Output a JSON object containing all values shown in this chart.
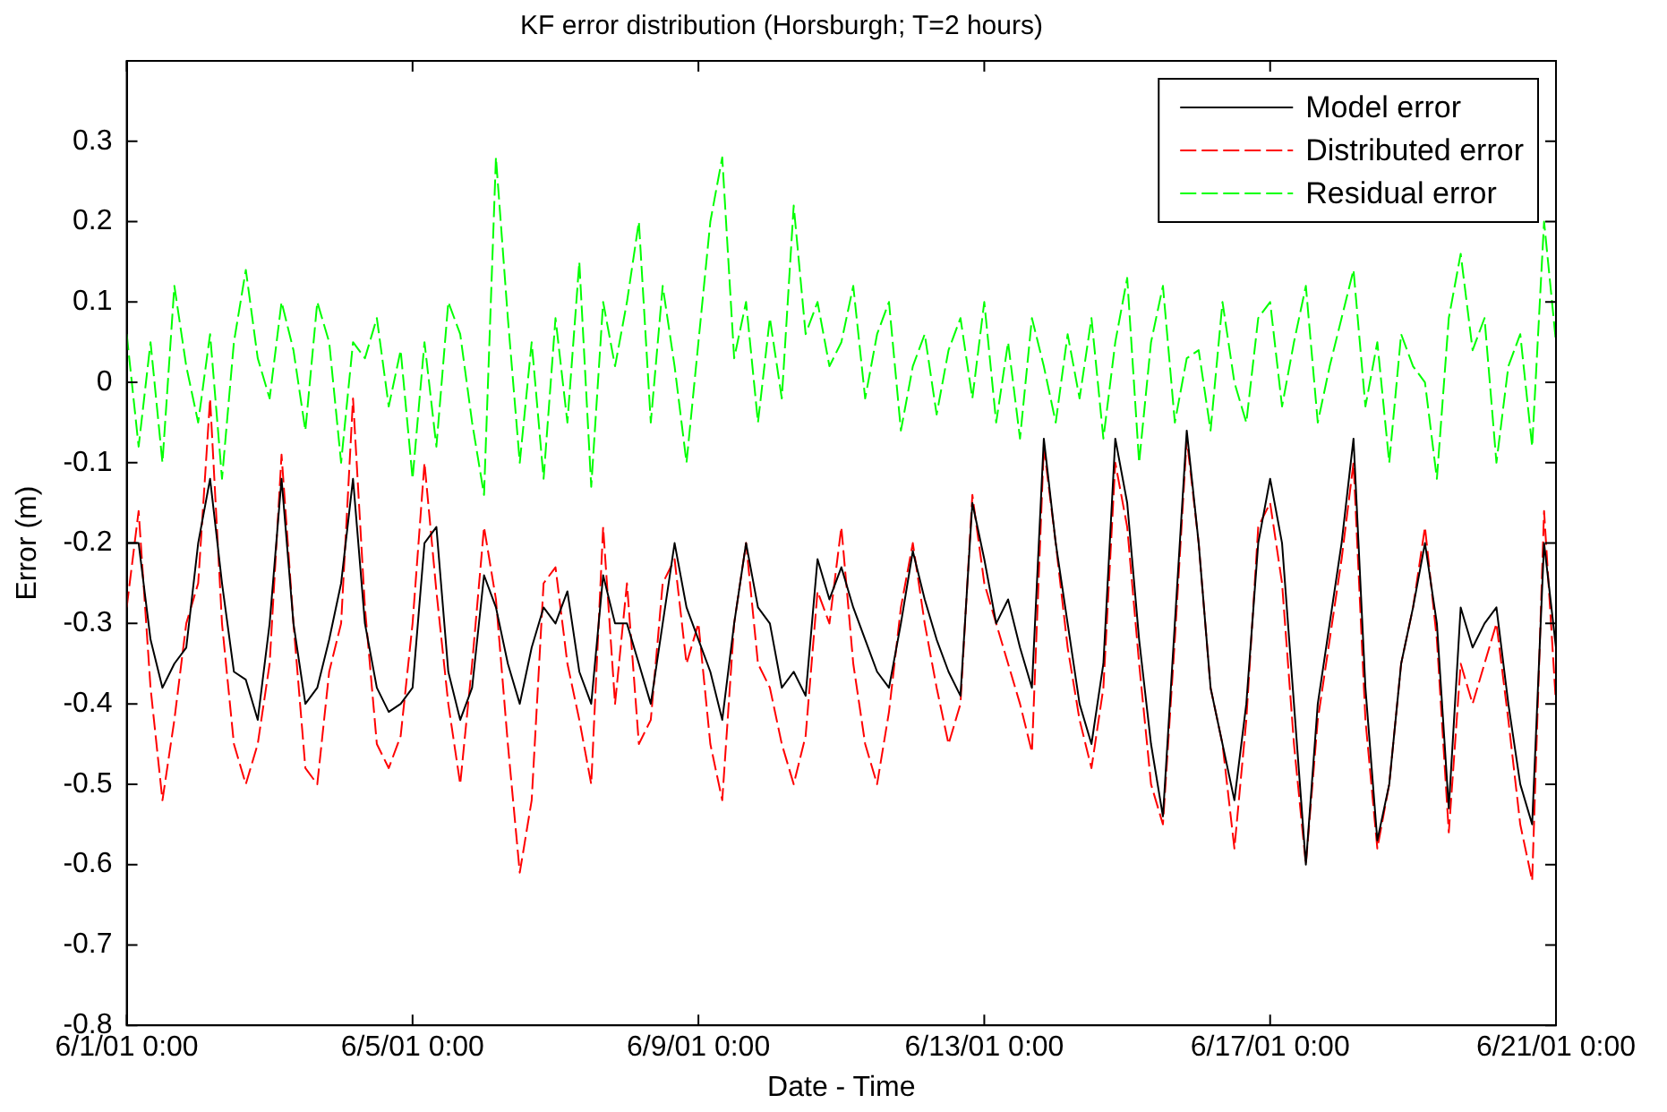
{
  "chart_data": {
    "type": "line",
    "title": "KF error distribution (Horsburgh; T=2 hours)",
    "xlabel": "Date - Time",
    "ylabel": "Error (m)",
    "x": [
      "--06-01T00:00",
      "--06-01T04:00",
      "--06-01T08:00",
      "--06-01T12:00",
      "--06-01T16:00",
      "--06-01T20:00",
      "--06-02T00:00",
      "--06-02T04:00",
      "--06-02T08:00",
      "--06-02T12:00",
      "--06-02T16:00",
      "--06-02T20:00",
      "--06-03T00:00",
      "--06-03T04:00",
      "--06-03T08:00",
      "--06-03T12:00",
      "--06-03T16:00",
      "--06-03T20:00",
      "--06-04T00:00",
      "--06-04T04:00",
      "--06-04T08:00",
      "--06-04T12:00",
      "--06-04T16:00",
      "--06-04T20:00",
      "--06-05T00:00",
      "--06-05T04:00",
      "--06-05T08:00",
      "--06-05T12:00",
      "--06-05T16:00",
      "--06-05T20:00",
      "--06-06T00:00",
      "--06-06T04:00",
      "--06-06T08:00",
      "--06-06T12:00",
      "--06-06T16:00",
      "--06-06T20:00",
      "--06-07T00:00",
      "--06-07T04:00",
      "--06-07T08:00",
      "--06-07T12:00",
      "--06-07T16:00",
      "--06-07T20:00",
      "--06-08T00:00",
      "--06-08T04:00",
      "--06-08T08:00",
      "--06-08T12:00",
      "--06-08T16:00",
      "--06-08T20:00",
      "--06-09T00:00",
      "--06-09T04:00",
      "--06-09T08:00",
      "--06-09T12:00",
      "--06-09T16:00",
      "--06-09T20:00",
      "--06-10T00:00",
      "--06-10T04:00",
      "--06-10T08:00",
      "--06-10T12:00",
      "--06-10T16:00",
      "--06-10T20:00",
      "--06-11T00:00",
      "--06-11T04:00",
      "--06-11T08:00",
      "--06-11T12:00",
      "--06-11T16:00",
      "--06-11T20:00",
      "--06-12T00:00",
      "--06-12T04:00",
      "--06-12T08:00",
      "--06-12T12:00",
      "--06-12T16:00",
      "--06-12T20:00",
      "--06-13T00:00",
      "--06-13T04:00",
      "--06-13T08:00",
      "--06-13T12:00",
      "--06-13T16:00",
      "--06-13T20:00",
      "--06-14T00:00",
      "--06-14T04:00",
      "--06-14T08:00",
      "--06-14T12:00",
      "--06-14T16:00",
      "--06-14T20:00",
      "--06-15T00:00",
      "--06-15T04:00",
      "--06-15T08:00",
      "--06-15T12:00",
      "--06-15T16:00",
      "--06-15T20:00",
      "--06-16T00:00",
      "--06-16T04:00",
      "--06-16T08:00",
      "--06-16T12:00",
      "--06-16T16:00",
      "--06-16T20:00",
      "--06-17T00:00",
      "--06-17T04:00",
      "--06-17T08:00",
      "--06-17T12:00",
      "--06-17T16:00",
      "--06-17T20:00",
      "--06-18T00:00",
      "--06-18T04:00",
      "--06-18T08:00",
      "--06-18T12:00",
      "--06-18T16:00",
      "--06-18T20:00",
      "--06-19T00:00",
      "--06-19T04:00",
      "--06-19T08:00",
      "--06-19T12:00",
      "--06-19T16:00",
      "--06-19T20:00",
      "--06-20T00:00",
      "--06-20T04:00",
      "--06-20T08:00",
      "--06-20T12:00",
      "--06-20T16:00",
      "--06-20T20:00",
      "--06-21T00:00"
    ],
    "series": [
      {
        "name": "Model error",
        "color": "#000000",
        "line_style": "solid",
        "values": [
          -0.2,
          -0.2,
          -0.32,
          -0.38,
          -0.35,
          -0.33,
          -0.2,
          -0.12,
          -0.25,
          -0.36,
          -0.37,
          -0.42,
          -0.3,
          -0.12,
          -0.3,
          -0.4,
          -0.38,
          -0.32,
          -0.25,
          -0.12,
          -0.3,
          -0.38,
          -0.41,
          -0.4,
          -0.38,
          -0.2,
          -0.18,
          -0.36,
          -0.42,
          -0.38,
          -0.24,
          -0.28,
          -0.35,
          -0.4,
          -0.33,
          -0.28,
          -0.3,
          -0.26,
          -0.36,
          -0.4,
          -0.24,
          -0.3,
          -0.3,
          -0.35,
          -0.4,
          -0.3,
          -0.2,
          -0.28,
          -0.32,
          -0.36,
          -0.42,
          -0.3,
          -0.2,
          -0.28,
          -0.3,
          -0.38,
          -0.36,
          -0.39,
          -0.22,
          -0.27,
          -0.23,
          -0.28,
          -0.32,
          -0.36,
          -0.38,
          -0.3,
          -0.21,
          -0.27,
          -0.32,
          -0.36,
          -0.39,
          -0.15,
          -0.22,
          -0.3,
          -0.27,
          -0.33,
          -0.38,
          -0.07,
          -0.2,
          -0.3,
          -0.4,
          -0.45,
          -0.35,
          -0.07,
          -0.15,
          -0.32,
          -0.45,
          -0.54,
          -0.3,
          -0.06,
          -0.2,
          -0.38,
          -0.45,
          -0.52,
          -0.4,
          -0.2,
          -0.12,
          -0.2,
          -0.4,
          -0.6,
          -0.4,
          -0.3,
          -0.2,
          -0.07,
          -0.38,
          -0.57,
          -0.5,
          -0.35,
          -0.28,
          -0.2,
          -0.3,
          -0.53,
          -0.28,
          -0.33,
          -0.3,
          -0.28,
          -0.4,
          -0.5,
          -0.55,
          -0.2,
          -0.33
        ]
      },
      {
        "name": "Distributed error",
        "color": "#ff0000",
        "line_style": "dashed",
        "values": [
          -0.28,
          -0.16,
          -0.38,
          -0.52,
          -0.42,
          -0.3,
          -0.25,
          -0.02,
          -0.3,
          -0.45,
          -0.5,
          -0.45,
          -0.35,
          -0.09,
          -0.3,
          -0.48,
          -0.5,
          -0.36,
          -0.3,
          -0.02,
          -0.28,
          -0.45,
          -0.48,
          -0.44,
          -0.3,
          -0.1,
          -0.26,
          -0.4,
          -0.5,
          -0.35,
          -0.18,
          -0.27,
          -0.45,
          -0.61,
          -0.52,
          -0.25,
          -0.23,
          -0.35,
          -0.42,
          -0.5,
          -0.18,
          -0.4,
          -0.25,
          -0.45,
          -0.42,
          -0.25,
          -0.22,
          -0.35,
          -0.3,
          -0.45,
          -0.52,
          -0.3,
          -0.2,
          -0.35,
          -0.38,
          -0.45,
          -0.5,
          -0.44,
          -0.26,
          -0.3,
          -0.18,
          -0.35,
          -0.45,
          -0.5,
          -0.41,
          -0.28,
          -0.2,
          -0.3,
          -0.38,
          -0.45,
          -0.4,
          -0.14,
          -0.25,
          -0.3,
          -0.35,
          -0.4,
          -0.46,
          -0.08,
          -0.2,
          -0.33,
          -0.42,
          -0.48,
          -0.38,
          -0.1,
          -0.18,
          -0.35,
          -0.5,
          -0.55,
          -0.32,
          -0.07,
          -0.2,
          -0.38,
          -0.45,
          -0.58,
          -0.42,
          -0.18,
          -0.15,
          -0.25,
          -0.45,
          -0.6,
          -0.42,
          -0.32,
          -0.22,
          -0.1,
          -0.42,
          -0.58,
          -0.5,
          -0.35,
          -0.28,
          -0.18,
          -0.32,
          -0.56,
          -0.35,
          -0.4,
          -0.35,
          -0.3,
          -0.42,
          -0.55,
          -0.62,
          -0.16,
          -0.4
        ]
      },
      {
        "name": "Residual error",
        "color": "#00ff00",
        "line_style": "dashed",
        "values": [
          0.06,
          -0.08,
          0.05,
          -0.1,
          0.12,
          0.02,
          -0.05,
          0.06,
          -0.12,
          0.05,
          0.14,
          0.03,
          -0.02,
          0.1,
          0.04,
          -0.06,
          0.1,
          0.05,
          -0.1,
          0.05,
          0.03,
          0.08,
          -0.03,
          0.04,
          -0.12,
          0.05,
          -0.08,
          0.1,
          0.06,
          -0.05,
          -0.14,
          0.28,
          0.08,
          -0.1,
          0.05,
          -0.12,
          0.08,
          -0.05,
          0.15,
          -0.13,
          0.1,
          0.02,
          0.1,
          0.2,
          -0.05,
          0.12,
          0.02,
          -0.1,
          0.05,
          0.2,
          0.28,
          0.03,
          0.1,
          -0.05,
          0.08,
          -0.02,
          0.22,
          0.06,
          0.1,
          0.02,
          0.05,
          0.12,
          -0.02,
          0.06,
          0.1,
          -0.06,
          0.02,
          0.06,
          -0.04,
          0.04,
          0.08,
          -0.02,
          0.1,
          -0.05,
          0.05,
          -0.07,
          0.08,
          0.02,
          -0.05,
          0.06,
          -0.02,
          0.08,
          -0.07,
          0.05,
          0.13,
          -0.1,
          0.05,
          0.12,
          -0.05,
          0.03,
          0.04,
          -0.06,
          0.1,
          0.0,
          -0.05,
          0.08,
          0.1,
          -0.03,
          0.05,
          0.12,
          -0.05,
          0.02,
          0.08,
          0.14,
          -0.03,
          0.05,
          -0.1,
          0.06,
          0.02,
          0.0,
          -0.12,
          0.08,
          0.16,
          0.04,
          0.08,
          -0.1,
          0.02,
          0.06,
          -0.08,
          0.2,
          0.05
        ]
      }
    ],
    "xlim": [
      "--06-01T00:00",
      "--06-21T00:00"
    ],
    "xticks": [
      {
        "value": "--06-01T00:00",
        "label": "6/1/01 0:00"
      },
      {
        "value": "--06-05T00:00",
        "label": "6/5/01 0:00"
      },
      {
        "value": "--06-09T00:00",
        "label": "6/9/01 0:00"
      },
      {
        "value": "--06-13T00:00",
        "label": "6/13/01 0:00"
      },
      {
        "value": "--06-17T00:00",
        "label": "6/17/01 0:00"
      },
      {
        "value": "--06-21T00:00",
        "label": "6/21/01 0:00"
      }
    ],
    "ylim": [
      -0.8,
      0.4
    ],
    "yticks": [
      -0.8,
      -0.7,
      -0.6,
      -0.5,
      -0.4,
      -0.3,
      -0.2,
      -0.1,
      0,
      0.1,
      0.2,
      0.3
    ],
    "grid": false,
    "legend": "top right",
    "marker": "none"
  }
}
